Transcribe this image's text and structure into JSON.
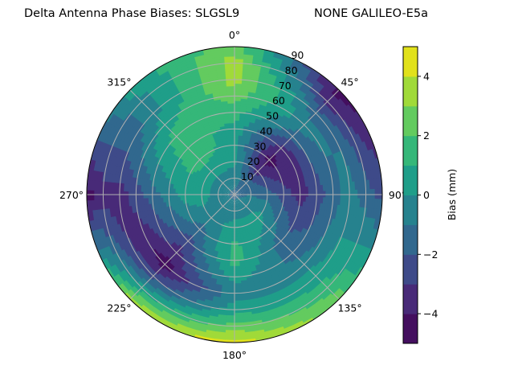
{
  "chart_data": {
    "type": "contour",
    "projection": "polar",
    "title_left": "Delta Antenna Phase Biases: SLGSL9",
    "title_right": "NONE GALILEO-E5a",
    "theta_direction": "clockwise",
    "theta_zero": "north",
    "theta_tick_labels": [
      "0°",
      "45°",
      "90°",
      "135°",
      "180°",
      "225°",
      "270°",
      "315°"
    ],
    "r_tick_labels": [
      "10",
      "20",
      "30",
      "40",
      "50",
      "60",
      "70",
      "80",
      "90"
    ],
    "r_range": [
      0,
      90
    ],
    "grid": true,
    "colormap": "viridis",
    "levels": [
      -5,
      -4,
      -3,
      -2,
      -1,
      0,
      1,
      2,
      3,
      4,
      5
    ],
    "level_colors": [
      "#440f5f",
      "#482a78",
      "#3e4a89",
      "#31688e",
      "#26828e",
      "#1f9e89",
      "#35b779",
      "#63cb5f",
      "#a0da39",
      "#e1e11b"
    ],
    "colorbar": {
      "label": "Bias (mm)",
      "tick_labels": [
        "4",
        "2",
        "0",
        "−2",
        "−4"
      ],
      "ticks": [
        4,
        2,
        0,
        -2,
        -4
      ],
      "range": [
        -5,
        5
      ],
      "position": "right"
    },
    "azimuth": [
      0,
      45,
      90,
      135,
      180,
      225,
      270,
      315
    ],
    "r": [
      0,
      10,
      20,
      30,
      40,
      50,
      60,
      70,
      80,
      90
    ],
    "values": [
      [
        -1.2,
        -0.5,
        0.3,
        0.5,
        0.7,
        1.5,
        2.5,
        3.5,
        3.5,
        2.5
      ],
      [
        -1.2,
        -1.5,
        -3.5,
        -4.5,
        -3.5,
        -1.5,
        -0.5,
        -1.5,
        -3.5,
        -4.5
      ],
      [
        -1.2,
        -1.0,
        -1.5,
        -2.5,
        -3.5,
        -2.5,
        -1.5,
        -0.5,
        -1.5,
        -2.5
      ],
      [
        -1.2,
        -0.5,
        0.5,
        -0.5,
        -1.5,
        -1.5,
        -0.5,
        0.5,
        1.5,
        2.5
      ],
      [
        -1.2,
        -0.5,
        0.5,
        1.2,
        1.5,
        0.5,
        -0.5,
        0.5,
        2.5,
        4.5
      ],
      [
        -1.2,
        -0.5,
        -0.5,
        -1.5,
        -2.5,
        -3.5,
        -4.5,
        -2.5,
        0.5,
        3.5
      ],
      [
        -1.2,
        -0.5,
        0.5,
        0.5,
        -0.5,
        -1.5,
        -2.5,
        -3.5,
        -3.5,
        -4.5
      ],
      [
        -1.2,
        -0.5,
        0.5,
        1.5,
        1.5,
        1.5,
        0.5,
        -0.5,
        -0.5,
        0.5
      ]
    ]
  }
}
